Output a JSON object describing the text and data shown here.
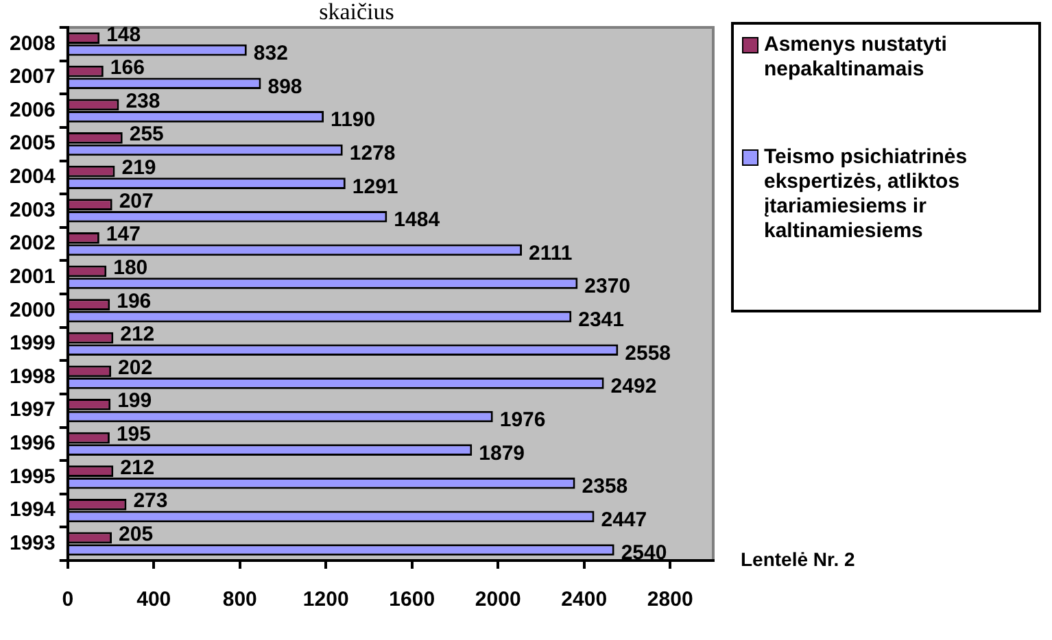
{
  "chart_data": {
    "type": "bar",
    "orientation": "horizontal",
    "title": "skaičius",
    "categories": [
      "2008",
      "2007",
      "2006",
      "2005",
      "2004",
      "2003",
      "2002",
      "2001",
      "2000",
      "1999",
      "1998",
      "1997",
      "1996",
      "1995",
      "1994",
      "1993"
    ],
    "series": [
      {
        "name": "Asmenys nustatyti nepakaltinamais",
        "color": "#993366",
        "values": [
          148,
          166,
          238,
          255,
          219,
          207,
          147,
          180,
          196,
          212,
          202,
          199,
          195,
          212,
          273,
          205
        ]
      },
      {
        "name": "Teismo psichiatrinės ekspertizės, atliktos įtariamiesiems ir kaltinamiesiems",
        "color": "#9999ff",
        "values": [
          832,
          898,
          1190,
          1278,
          1291,
          1484,
          2111,
          2370,
          2341,
          2558,
          2492,
          1976,
          1879,
          2358,
          2447,
          2540
        ]
      }
    ],
    "xlim": [
      0,
      3000
    ],
    "xticks": [
      0,
      400,
      800,
      1200,
      1600,
      2000,
      2400,
      2800
    ],
    "data_labels": true,
    "grid": false,
    "legend": "right",
    "annotations": [
      "Lentelė Nr. 2"
    ]
  }
}
